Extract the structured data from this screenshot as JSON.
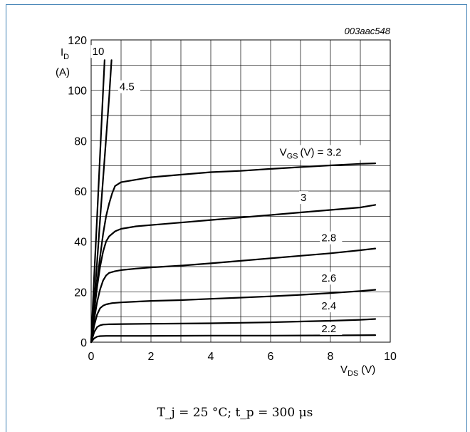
{
  "chart_data": {
    "type": "line",
    "document_id": "003aac548",
    "xlabel": "V",
    "xlabel_sub": "DS",
    "xlabel_unit": "(V)",
    "ylabel": "I",
    "ylabel_sub": "D",
    "ylabel_unit": "(A)",
    "xlim": [
      0,
      10
    ],
    "ylim": [
      0,
      120
    ],
    "xticks": [
      0,
      2,
      4,
      6,
      8,
      10
    ],
    "yticks": [
      0,
      20,
      40,
      60,
      80,
      100,
      120
    ],
    "grid": true,
    "legend_text": {
      "prefix": "V",
      "prefix_sub": "GS",
      "suffix": "(V) = 3.2"
    },
    "series": [
      {
        "name": "10",
        "x": [
          0,
          0.05,
          0.1,
          0.2,
          0.3,
          0.4,
          0.45
        ],
        "y": [
          0,
          13,
          26,
          50,
          75,
          100,
          112
        ]
      },
      {
        "name": "4.5",
        "x": [
          0,
          0.1,
          0.2,
          0.3,
          0.4,
          0.5,
          0.6,
          0.68
        ],
        "y": [
          0,
          16,
          32,
          49,
          65,
          81,
          97,
          112
        ]
      },
      {
        "name": "3.2",
        "x": [
          0,
          0.1,
          0.2,
          0.3,
          0.4,
          0.5,
          0.6,
          0.7,
          0.8,
          1.0,
          1.5,
          2,
          3,
          4,
          5,
          6,
          7,
          8,
          9,
          9.5
        ],
        "y": [
          0,
          12,
          24,
          34,
          43,
          50,
          55,
          59,
          62,
          63.5,
          64.5,
          65.5,
          66.5,
          67.5,
          68,
          68.8,
          69.5,
          70.2,
          70.8,
          71
        ]
      },
      {
        "name": "3",
        "x": [
          0,
          0.1,
          0.2,
          0.3,
          0.4,
          0.5,
          0.6,
          0.8,
          1.0,
          1.5,
          2,
          3,
          4,
          5,
          6,
          7,
          8,
          9,
          9.5
        ],
        "y": [
          0,
          12,
          22,
          30,
          36,
          40,
          42,
          44,
          45,
          46,
          46.5,
          47.5,
          48.5,
          49.5,
          50.5,
          51.5,
          52.5,
          53.5,
          54.5
        ]
      },
      {
        "name": "2.8",
        "x": [
          0,
          0.1,
          0.2,
          0.3,
          0.4,
          0.5,
          0.6,
          0.8,
          1.0,
          1.5,
          2,
          3,
          4,
          5,
          6,
          7,
          8,
          9,
          9.5
        ],
        "y": [
          0,
          9,
          16,
          21,
          24.5,
          26.5,
          27.5,
          28.2,
          28.6,
          29.2,
          29.7,
          30.4,
          31.3,
          32.3,
          33.3,
          34.3,
          35.3,
          36.5,
          37.2
        ]
      },
      {
        "name": "2.6",
        "x": [
          0,
          0.1,
          0.2,
          0.3,
          0.4,
          0.5,
          0.7,
          1.0,
          1.5,
          2,
          3,
          4,
          5,
          6,
          7,
          8,
          9,
          9.5
        ],
        "y": [
          0,
          6.5,
          11,
          13.5,
          14.5,
          15,
          15.5,
          15.8,
          16.1,
          16.4,
          16.7,
          17.2,
          17.7,
          18.2,
          18.8,
          19.5,
          20.3,
          20.8
        ]
      },
      {
        "name": "2.4",
        "x": [
          0,
          0.1,
          0.2,
          0.3,
          0.4,
          0.6,
          1.0,
          2,
          3,
          4,
          5,
          6,
          7,
          8,
          9,
          9.5
        ],
        "y": [
          0,
          4,
          6,
          6.7,
          7,
          7.1,
          7.2,
          7.3,
          7.4,
          7.5,
          7.7,
          7.9,
          8.2,
          8.5,
          8.9,
          9.2
        ]
      },
      {
        "name": "2.2",
        "x": [
          0,
          0.1,
          0.2,
          0.3,
          0.5,
          1,
          2,
          4,
          6,
          8,
          9.5
        ],
        "y": [
          0,
          1.5,
          2.2,
          2.4,
          2.5,
          2.5,
          2.5,
          2.6,
          2.6,
          2.7,
          2.8
        ]
      }
    ],
    "curve_labels": [
      {
        "series": "10",
        "text": "10",
        "x": 0.04,
        "y": 114
      },
      {
        "series": "4.5",
        "text": "4.5",
        "x": 0.95,
        "y": 100
      },
      {
        "series": "3",
        "text": "3",
        "x": 7.0,
        "y": 56
      },
      {
        "series": "2.8",
        "text": "2.8",
        "x": 7.7,
        "y": 40
      },
      {
        "series": "2.6",
        "text": "2.6",
        "x": 7.7,
        "y": 24
      },
      {
        "series": "2.4",
        "text": "2.4",
        "x": 7.7,
        "y": 13
      },
      {
        "series": "2.2",
        "text": "2.2",
        "x": 7.7,
        "y": 4
      }
    ],
    "legend_position": {
      "x": 6.3,
      "y": 74
    }
  },
  "conditions": "T_j = 25 °C; t_p = 300 μs"
}
